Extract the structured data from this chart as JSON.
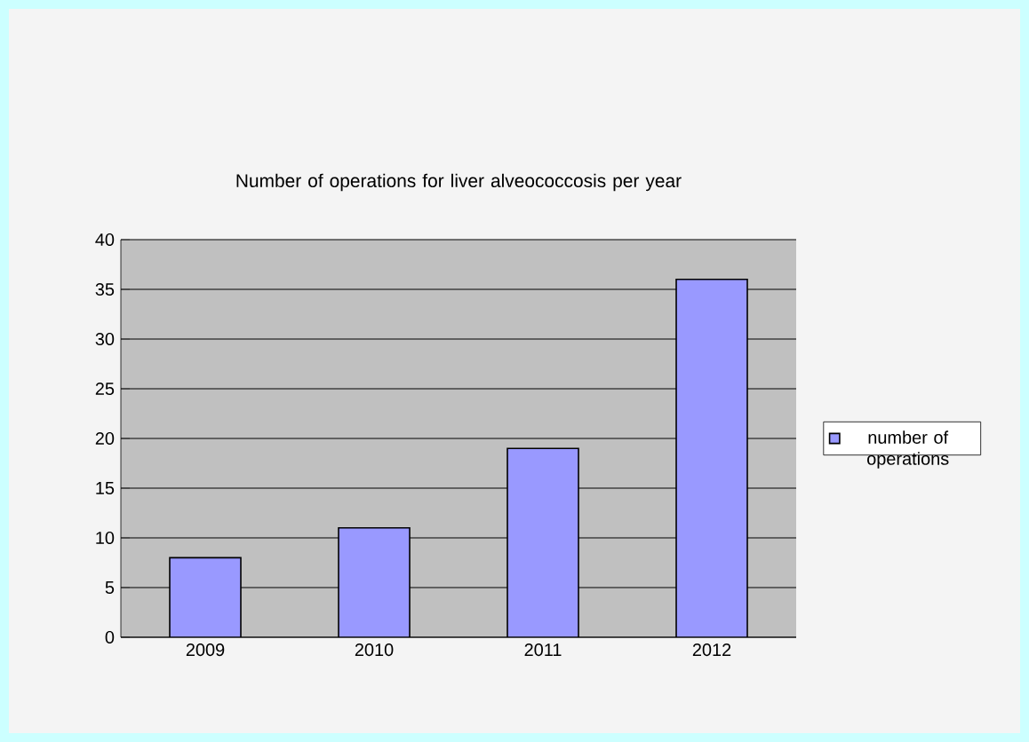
{
  "chart_data": {
    "type": "bar",
    "title": "Number of operations for liver alveococcosis per year",
    "categories": [
      "2009",
      "2010",
      "2011",
      "2012"
    ],
    "series": [
      {
        "name": "number of operations",
        "color": "#9999ff",
        "values": [
          8,
          11,
          19,
          36
        ]
      }
    ],
    "ylim": [
      0,
      40
    ],
    "yticks": [
      0,
      5,
      10,
      15,
      20,
      25,
      30,
      35,
      40
    ],
    "grid": "y",
    "legend": "right"
  }
}
